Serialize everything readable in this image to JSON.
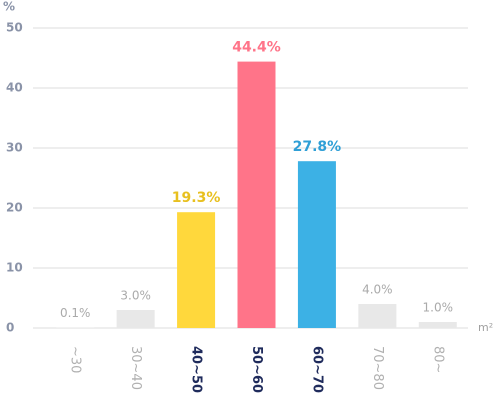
{
  "chart_data": {
    "type": "bar",
    "y_unit": "%",
    "x_unit": "m²",
    "categories": [
      "~30",
      "30~40",
      "40~50",
      "50~60",
      "60~70",
      "70~80",
      "80~"
    ],
    "values": [
      0.1,
      3.0,
      19.3,
      44.4,
      27.8,
      4.0,
      1.0
    ],
    "value_labels": [
      "0.1%",
      "3.0%",
      "19.3%",
      "44.4%",
      "27.8%",
      "4.0%",
      "1.0%"
    ],
    "colors": [
      "#e8e8e8",
      "#e8e8e8",
      "#ffd83c",
      "#ff7489",
      "#3cb1e5",
      "#e8e8e8",
      "#e8e8e8"
    ],
    "value_label_colors": [
      "#aaaaaa",
      "#aaaaaa",
      "#e8c020",
      "#ff7489",
      "#2f9fd6",
      "#aaaaaa",
      "#aaaaaa"
    ],
    "category_label_colors": [
      "#b0b0b0",
      "#b0b0b0",
      "#1f2b5c",
      "#1f2b5c",
      "#1f2b5c",
      "#b0b0b0",
      "#b0b0b0"
    ],
    "ylim": [
      0,
      50
    ],
    "yticks": [
      0,
      10,
      20,
      30,
      40,
      50
    ],
    "grid": true
  }
}
